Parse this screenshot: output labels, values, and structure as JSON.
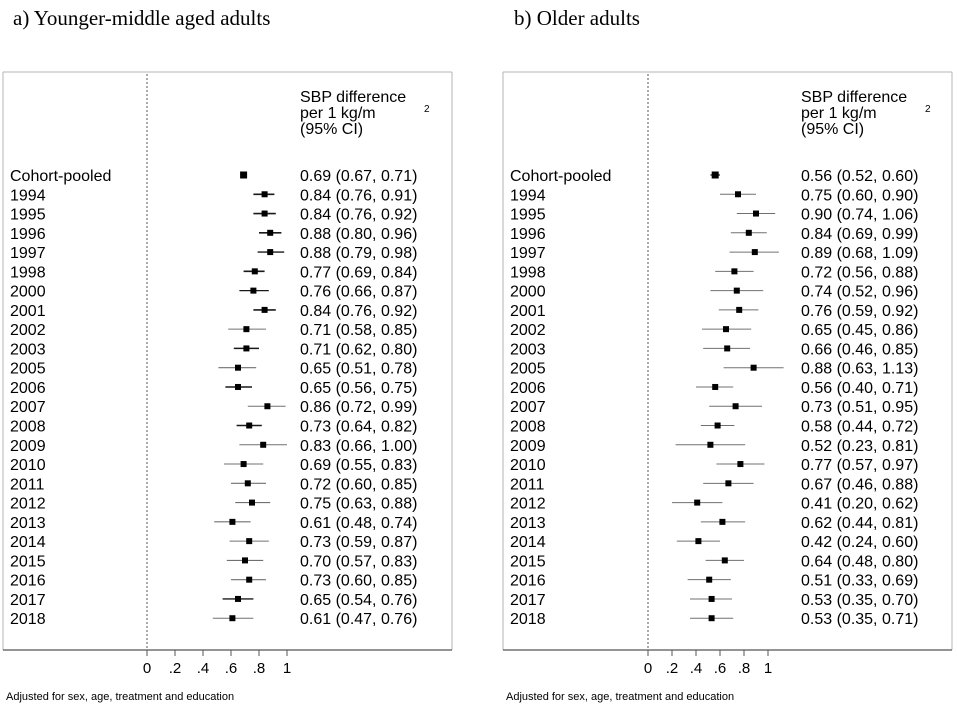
{
  "panels": [
    {
      "title": "a)   Younger-middle aged adults",
      "header": [
        "SBP difference",
        "per 1 kg/m",
        "(95% CI)"
      ],
      "superscript": "2",
      "footnote": "Adjusted for sex, age, treatment and education"
    },
    {
      "title": "b) Older adults",
      "header": [
        "SBP difference",
        "per 1 kg/m",
        "(95% CI)"
      ],
      "superscript": "2",
      "footnote": "Adjusted for sex, age, treatment and education"
    }
  ],
  "chart_data": [
    {
      "type": "forest",
      "xlim": [
        0,
        1
      ],
      "xticks": [
        0,
        0.2,
        0.4,
        0.6,
        0.8,
        1
      ],
      "xtick_labels": [
        "0",
        ".2",
        ".4",
        ".6",
        ".8",
        "1"
      ],
      "reference_line": 0,
      "rows": [
        {
          "label": "Cohort-pooled",
          "est": 0.69,
          "lo": 0.67,
          "hi": 0.71,
          "text": "0.69 (0.67, 0.71)"
        },
        {
          "label": "1994",
          "est": 0.84,
          "lo": 0.76,
          "hi": 0.91,
          "text": "0.84 (0.76, 0.91)"
        },
        {
          "label": "1995",
          "est": 0.84,
          "lo": 0.76,
          "hi": 0.92,
          "text": "0.84 (0.76, 0.92)"
        },
        {
          "label": "1996",
          "est": 0.88,
          "lo": 0.8,
          "hi": 0.96,
          "text": "0.88 (0.80, 0.96)"
        },
        {
          "label": "1997",
          "est": 0.88,
          "lo": 0.79,
          "hi": 0.98,
          "text": "0.88 (0.79, 0.98)"
        },
        {
          "label": "1998",
          "est": 0.77,
          "lo": 0.69,
          "hi": 0.84,
          "text": "0.77 (0.69, 0.84)"
        },
        {
          "label": "2000",
          "est": 0.76,
          "lo": 0.66,
          "hi": 0.87,
          "text": "0.76 (0.66, 0.87)"
        },
        {
          "label": "2001",
          "est": 0.84,
          "lo": 0.76,
          "hi": 0.92,
          "text": "0.84 (0.76, 0.92)"
        },
        {
          "label": "2002",
          "est": 0.71,
          "lo": 0.58,
          "hi": 0.85,
          "text": "0.71 (0.58, 0.85)"
        },
        {
          "label": "2003",
          "est": 0.71,
          "lo": 0.62,
          "hi": 0.8,
          "text": "0.71 (0.62, 0.80)"
        },
        {
          "label": "2005",
          "est": 0.65,
          "lo": 0.51,
          "hi": 0.78,
          "text": "0.65 (0.51, 0.78)"
        },
        {
          "label": "2006",
          "est": 0.65,
          "lo": 0.56,
          "hi": 0.75,
          "text": "0.65 (0.56, 0.75)"
        },
        {
          "label": "2007",
          "est": 0.86,
          "lo": 0.72,
          "hi": 0.99,
          "text": "0.86 (0.72, 0.99)"
        },
        {
          "label": "2008",
          "est": 0.73,
          "lo": 0.64,
          "hi": 0.82,
          "text": "0.73 (0.64, 0.82)"
        },
        {
          "label": "2009",
          "est": 0.83,
          "lo": 0.66,
          "hi": 1.0,
          "text": "0.83 (0.66, 1.00)"
        },
        {
          "label": "2010",
          "est": 0.69,
          "lo": 0.55,
          "hi": 0.83,
          "text": "0.69 (0.55, 0.83)"
        },
        {
          "label": "2011",
          "est": 0.72,
          "lo": 0.6,
          "hi": 0.85,
          "text": "0.72 (0.60, 0.85)"
        },
        {
          "label": "2012",
          "est": 0.75,
          "lo": 0.63,
          "hi": 0.88,
          "text": "0.75 (0.63, 0.88)"
        },
        {
          "label": "2013",
          "est": 0.61,
          "lo": 0.48,
          "hi": 0.74,
          "text": "0.61 (0.48, 0.74)"
        },
        {
          "label": "2014",
          "est": 0.73,
          "lo": 0.59,
          "hi": 0.87,
          "text": "0.73 (0.59, 0.87)"
        },
        {
          "label": "2015",
          "est": 0.7,
          "lo": 0.57,
          "hi": 0.83,
          "text": "0.70 (0.57, 0.83)"
        },
        {
          "label": "2016",
          "est": 0.73,
          "lo": 0.6,
          "hi": 0.85,
          "text": "0.73 (0.60, 0.85)"
        },
        {
          "label": "2017",
          "est": 0.65,
          "lo": 0.54,
          "hi": 0.76,
          "text": "0.65 (0.54, 0.76)"
        },
        {
          "label": "2018",
          "est": 0.61,
          "lo": 0.47,
          "hi": 0.76,
          "text": "0.61 (0.47, 0.76)"
        }
      ]
    },
    {
      "type": "forest",
      "xlim": [
        0,
        1
      ],
      "xticks": [
        0,
        0.2,
        0.4,
        0.6,
        0.8,
        1
      ],
      "xtick_labels": [
        "0",
        ".2",
        ".4",
        ".6",
        ".8",
        "1"
      ],
      "reference_line": 0,
      "rows": [
        {
          "label": "Cohort-pooled",
          "est": 0.56,
          "lo": 0.52,
          "hi": 0.6,
          "text": "0.56 (0.52, 0.60)"
        },
        {
          "label": "1994",
          "est": 0.75,
          "lo": 0.6,
          "hi": 0.9,
          "text": "0.75 (0.60, 0.90)"
        },
        {
          "label": "1995",
          "est": 0.9,
          "lo": 0.74,
          "hi": 1.06,
          "text": "0.90 (0.74, 1.06)"
        },
        {
          "label": "1996",
          "est": 0.84,
          "lo": 0.69,
          "hi": 0.99,
          "text": "0.84 (0.69, 0.99)"
        },
        {
          "label": "1997",
          "est": 0.89,
          "lo": 0.68,
          "hi": 1.09,
          "text": "0.89 (0.68, 1.09)"
        },
        {
          "label": "1998",
          "est": 0.72,
          "lo": 0.56,
          "hi": 0.88,
          "text": "0.72 (0.56, 0.88)"
        },
        {
          "label": "2000",
          "est": 0.74,
          "lo": 0.52,
          "hi": 0.96,
          "text": "0.74 (0.52, 0.96)"
        },
        {
          "label": "2001",
          "est": 0.76,
          "lo": 0.59,
          "hi": 0.92,
          "text": "0.76 (0.59, 0.92)"
        },
        {
          "label": "2002",
          "est": 0.65,
          "lo": 0.45,
          "hi": 0.86,
          "text": "0.65 (0.45, 0.86)"
        },
        {
          "label": "2003",
          "est": 0.66,
          "lo": 0.46,
          "hi": 0.85,
          "text": "0.66 (0.46, 0.85)"
        },
        {
          "label": "2005",
          "est": 0.88,
          "lo": 0.63,
          "hi": 1.13,
          "text": "0.88 (0.63, 1.13)"
        },
        {
          "label": "2006",
          "est": 0.56,
          "lo": 0.4,
          "hi": 0.71,
          "text": "0.56 (0.40, 0.71)"
        },
        {
          "label": "2007",
          "est": 0.73,
          "lo": 0.51,
          "hi": 0.95,
          "text": "0.73 (0.51, 0.95)"
        },
        {
          "label": "2008",
          "est": 0.58,
          "lo": 0.44,
          "hi": 0.72,
          "text": "0.58 (0.44, 0.72)"
        },
        {
          "label": "2009",
          "est": 0.52,
          "lo": 0.23,
          "hi": 0.81,
          "text": "0.52 (0.23, 0.81)"
        },
        {
          "label": "2010",
          "est": 0.77,
          "lo": 0.57,
          "hi": 0.97,
          "text": "0.77 (0.57, 0.97)"
        },
        {
          "label": "2011",
          "est": 0.67,
          "lo": 0.46,
          "hi": 0.88,
          "text": "0.67 (0.46, 0.88)"
        },
        {
          "label": "2012",
          "est": 0.41,
          "lo": 0.2,
          "hi": 0.62,
          "text": "0.41 (0.20, 0.62)"
        },
        {
          "label": "2013",
          "est": 0.62,
          "lo": 0.44,
          "hi": 0.81,
          "text": "0.62 (0.44, 0.81)"
        },
        {
          "label": "2014",
          "est": 0.42,
          "lo": 0.24,
          "hi": 0.6,
          "text": "0.42 (0.24, 0.60)"
        },
        {
          "label": "2015",
          "est": 0.64,
          "lo": 0.48,
          "hi": 0.8,
          "text": "0.64 (0.48, 0.80)"
        },
        {
          "label": "2016",
          "est": 0.51,
          "lo": 0.33,
          "hi": 0.69,
          "text": "0.51 (0.33, 0.69)"
        },
        {
          "label": "2017",
          "est": 0.53,
          "lo": 0.35,
          "hi": 0.7,
          "text": "0.53 (0.35, 0.70)"
        },
        {
          "label": "2018",
          "est": 0.53,
          "lo": 0.35,
          "hi": 0.71,
          "text": "0.53 (0.35, 0.71)"
        }
      ]
    }
  ]
}
